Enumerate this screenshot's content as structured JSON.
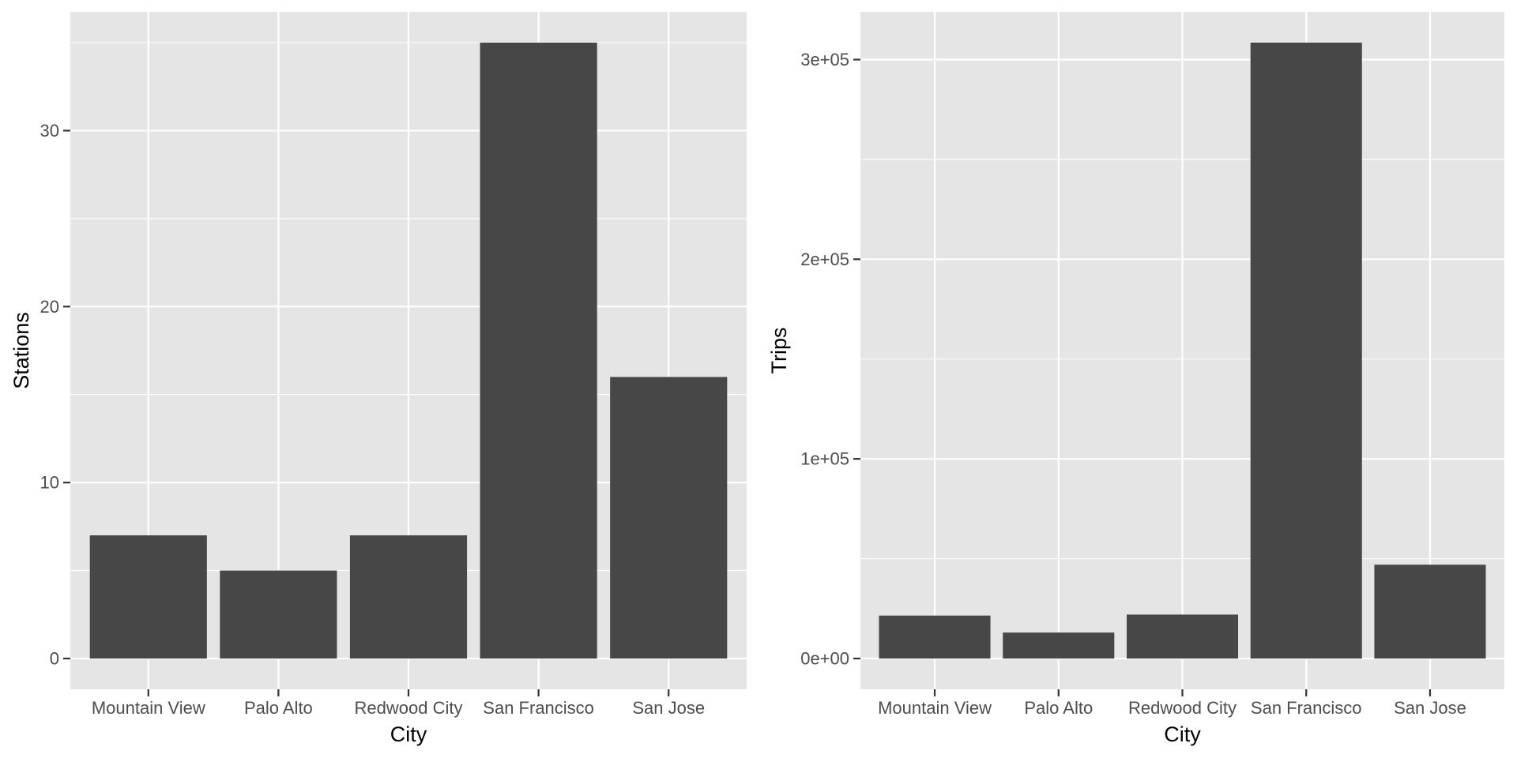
{
  "chart_data": [
    {
      "type": "bar",
      "categories": [
        "Mountain View",
        "Palo Alto",
        "Redwood City",
        "San Francisco",
        "San Jose"
      ],
      "values": [
        7,
        5,
        7,
        35,
        16
      ],
      "xlabel": "City",
      "ylabel": "Stations",
      "ylim": [
        -1.75,
        36.75
      ],
      "y_ticks": [
        0,
        10,
        20,
        30
      ],
      "y_tick_labels": [
        "0",
        "10",
        "20",
        "30"
      ],
      "y_minor_ticks": [
        5,
        15,
        25,
        35
      ],
      "grid": true,
      "bar_color": "#474747",
      "panel_color": "#e5e5e5",
      "grid_color": "#ffffff"
    },
    {
      "type": "bar",
      "categories": [
        "Mountain View",
        "Palo Alto",
        "Redwood City",
        "San Francisco",
        "San Jose"
      ],
      "values": [
        21500,
        13000,
        22000,
        308500,
        47000
      ],
      "xlabel": "City",
      "ylabel": "Trips",
      "ylim": [
        -15425,
        323925
      ],
      "y_ticks": [
        0,
        100000,
        200000,
        300000
      ],
      "y_tick_labels": [
        "0e+00",
        "1e+05",
        "2e+05",
        "3e+05"
      ],
      "y_minor_ticks": [
        50000,
        150000,
        250000
      ],
      "grid": true,
      "bar_color": "#474747",
      "panel_color": "#e5e5e5",
      "grid_color": "#ffffff"
    }
  ]
}
